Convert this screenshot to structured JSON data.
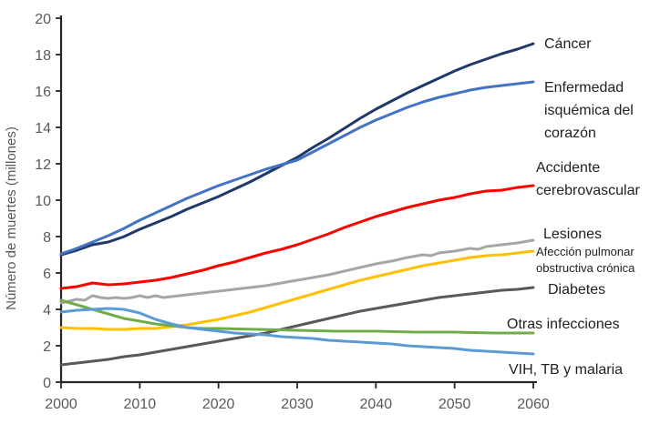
{
  "chart_data": {
    "type": "line",
    "title": "",
    "xlabel": "",
    "ylabel": "Número de muertes (millones)",
    "xlim": [
      2000,
      2060
    ],
    "ylim": [
      0,
      20
    ],
    "x_ticks": [
      2000,
      2010,
      2020,
      2030,
      2040,
      2050,
      2060
    ],
    "y_ticks": [
      0,
      2,
      4,
      6,
      8,
      10,
      12,
      14,
      16,
      18,
      20
    ],
    "grid": false,
    "legend_position": "right-annotations",
    "axis_color": "#262626",
    "tick_label_color": "#595959",
    "annotation_color": "#212121",
    "series": [
      {
        "name": "cancer",
        "label": "Cáncer",
        "color": "#1f3a68",
        "points": [
          [
            2000,
            7.0
          ],
          [
            2002,
            7.25
          ],
          [
            2004,
            7.55
          ],
          [
            2006,
            7.7
          ],
          [
            2008,
            8.0
          ],
          [
            2010,
            8.4
          ],
          [
            2012,
            8.75
          ],
          [
            2014,
            9.1
          ],
          [
            2016,
            9.5
          ],
          [
            2018,
            9.85
          ],
          [
            2020,
            10.2
          ],
          [
            2022,
            10.6
          ],
          [
            2024,
            11.0
          ],
          [
            2026,
            11.45
          ],
          [
            2028,
            11.9
          ],
          [
            2030,
            12.35
          ],
          [
            2032,
            12.9
          ],
          [
            2034,
            13.4
          ],
          [
            2036,
            13.95
          ],
          [
            2038,
            14.5
          ],
          [
            2040,
            15.0
          ],
          [
            2042,
            15.45
          ],
          [
            2044,
            15.9
          ],
          [
            2046,
            16.3
          ],
          [
            2048,
            16.7
          ],
          [
            2050,
            17.1
          ],
          [
            2052,
            17.45
          ],
          [
            2054,
            17.75
          ],
          [
            2056,
            18.05
          ],
          [
            2058,
            18.3
          ],
          [
            2060,
            18.6
          ]
        ]
      },
      {
        "name": "enfermedad-isquemica",
        "label": "Enfermedad isquémica del corazón",
        "color": "#4472c4",
        "points": [
          [
            2000,
            7.05
          ],
          [
            2002,
            7.35
          ],
          [
            2004,
            7.7
          ],
          [
            2006,
            8.05
          ],
          [
            2008,
            8.45
          ],
          [
            2010,
            8.9
          ],
          [
            2012,
            9.3
          ],
          [
            2014,
            9.7
          ],
          [
            2016,
            10.1
          ],
          [
            2018,
            10.45
          ],
          [
            2020,
            10.8
          ],
          [
            2022,
            11.1
          ],
          [
            2024,
            11.4
          ],
          [
            2026,
            11.7
          ],
          [
            2028,
            11.95
          ],
          [
            2030,
            12.2
          ],
          [
            2032,
            12.65
          ],
          [
            2034,
            13.1
          ],
          [
            2036,
            13.55
          ],
          [
            2038,
            14.0
          ],
          [
            2040,
            14.4
          ],
          [
            2042,
            14.75
          ],
          [
            2044,
            15.1
          ],
          [
            2046,
            15.4
          ],
          [
            2048,
            15.65
          ],
          [
            2050,
            15.85
          ],
          [
            2052,
            16.05
          ],
          [
            2054,
            16.2
          ],
          [
            2056,
            16.3
          ],
          [
            2058,
            16.4
          ],
          [
            2060,
            16.5
          ]
        ]
      },
      {
        "name": "accidente-cerebrovascular",
        "label": "Accidente cerebrovascular",
        "color": "#ff0000",
        "points": [
          [
            2000,
            5.15
          ],
          [
            2002,
            5.25
          ],
          [
            2004,
            5.45
          ],
          [
            2006,
            5.35
          ],
          [
            2008,
            5.4
          ],
          [
            2010,
            5.5
          ],
          [
            2012,
            5.6
          ],
          [
            2014,
            5.75
          ],
          [
            2016,
            5.95
          ],
          [
            2018,
            6.15
          ],
          [
            2020,
            6.4
          ],
          [
            2022,
            6.6
          ],
          [
            2024,
            6.85
          ],
          [
            2026,
            7.1
          ],
          [
            2028,
            7.3
          ],
          [
            2030,
            7.55
          ],
          [
            2032,
            7.85
          ],
          [
            2034,
            8.15
          ],
          [
            2036,
            8.5
          ],
          [
            2038,
            8.8
          ],
          [
            2040,
            9.1
          ],
          [
            2042,
            9.35
          ],
          [
            2044,
            9.6
          ],
          [
            2046,
            9.8
          ],
          [
            2048,
            10.0
          ],
          [
            2050,
            10.15
          ],
          [
            2052,
            10.35
          ],
          [
            2054,
            10.5
          ],
          [
            2056,
            10.55
          ],
          [
            2058,
            10.7
          ],
          [
            2060,
            10.8
          ]
        ]
      },
      {
        "name": "lesiones",
        "label": "Lesiones",
        "color": "#a6a6a6",
        "points": [
          [
            2000,
            4.35
          ],
          [
            2001,
            4.45
          ],
          [
            2002,
            4.55
          ],
          [
            2003,
            4.5
          ],
          [
            2004,
            4.75
          ],
          [
            2005,
            4.65
          ],
          [
            2006,
            4.6
          ],
          [
            2007,
            4.65
          ],
          [
            2008,
            4.6
          ],
          [
            2009,
            4.65
          ],
          [
            2010,
            4.75
          ],
          [
            2011,
            4.65
          ],
          [
            2012,
            4.75
          ],
          [
            2013,
            4.65
          ],
          [
            2014,
            4.7
          ],
          [
            2015,
            4.75
          ],
          [
            2016,
            4.8
          ],
          [
            2018,
            4.9
          ],
          [
            2020,
            5.0
          ],
          [
            2022,
            5.1
          ],
          [
            2024,
            5.2
          ],
          [
            2026,
            5.3
          ],
          [
            2028,
            5.45
          ],
          [
            2030,
            5.6
          ],
          [
            2032,
            5.75
          ],
          [
            2034,
            5.9
          ],
          [
            2036,
            6.1
          ],
          [
            2038,
            6.3
          ],
          [
            2040,
            6.5
          ],
          [
            2042,
            6.65
          ],
          [
            2044,
            6.85
          ],
          [
            2046,
            7.0
          ],
          [
            2047,
            6.95
          ],
          [
            2048,
            7.1
          ],
          [
            2050,
            7.2
          ],
          [
            2052,
            7.35
          ],
          [
            2053,
            7.3
          ],
          [
            2054,
            7.45
          ],
          [
            2056,
            7.55
          ],
          [
            2058,
            7.65
          ],
          [
            2060,
            7.8
          ]
        ]
      },
      {
        "name": "afeccion-pulmonar",
        "label": "Afección pulmonar obstructiva crónica",
        "color": "#ffc000",
        "points": [
          [
            2000,
            3.0
          ],
          [
            2002,
            2.95
          ],
          [
            2004,
            2.95
          ],
          [
            2006,
            2.9
          ],
          [
            2008,
            2.9
          ],
          [
            2010,
            2.95
          ],
          [
            2012,
            2.95
          ],
          [
            2014,
            3.05
          ],
          [
            2016,
            3.15
          ],
          [
            2018,
            3.3
          ],
          [
            2020,
            3.45
          ],
          [
            2022,
            3.65
          ],
          [
            2024,
            3.85
          ],
          [
            2026,
            4.1
          ],
          [
            2028,
            4.35
          ],
          [
            2030,
            4.6
          ],
          [
            2032,
            4.85
          ],
          [
            2034,
            5.1
          ],
          [
            2036,
            5.35
          ],
          [
            2038,
            5.6
          ],
          [
            2040,
            5.8
          ],
          [
            2042,
            6.0
          ],
          [
            2044,
            6.2
          ],
          [
            2046,
            6.4
          ],
          [
            2048,
            6.55
          ],
          [
            2050,
            6.7
          ],
          [
            2052,
            6.85
          ],
          [
            2054,
            6.95
          ],
          [
            2056,
            7.0
          ],
          [
            2058,
            7.1
          ],
          [
            2060,
            7.2
          ]
        ]
      },
      {
        "name": "diabetes",
        "label": "Diabetes",
        "color": "#595959",
        "points": [
          [
            2000,
            0.95
          ],
          [
            2002,
            1.05
          ],
          [
            2004,
            1.15
          ],
          [
            2006,
            1.25
          ],
          [
            2008,
            1.4
          ],
          [
            2010,
            1.5
          ],
          [
            2012,
            1.65
          ],
          [
            2014,
            1.8
          ],
          [
            2016,
            1.95
          ],
          [
            2018,
            2.1
          ],
          [
            2020,
            2.25
          ],
          [
            2022,
            2.4
          ],
          [
            2024,
            2.55
          ],
          [
            2026,
            2.7
          ],
          [
            2028,
            2.9
          ],
          [
            2030,
            3.1
          ],
          [
            2032,
            3.3
          ],
          [
            2034,
            3.5
          ],
          [
            2036,
            3.7
          ],
          [
            2038,
            3.9
          ],
          [
            2040,
            4.05
          ],
          [
            2042,
            4.2
          ],
          [
            2044,
            4.35
          ],
          [
            2046,
            4.5
          ],
          [
            2048,
            4.65
          ],
          [
            2050,
            4.75
          ],
          [
            2052,
            4.85
          ],
          [
            2054,
            4.95
          ],
          [
            2056,
            5.05
          ],
          [
            2058,
            5.1
          ],
          [
            2060,
            5.2
          ]
        ]
      },
      {
        "name": "otras-infecciones",
        "label": "Otras infecciones",
        "color": "#70ad47",
        "points": [
          [
            2000,
            4.5
          ],
          [
            2002,
            4.25
          ],
          [
            2004,
            4.0
          ],
          [
            2006,
            3.75
          ],
          [
            2008,
            3.5
          ],
          [
            2010,
            3.35
          ],
          [
            2012,
            3.2
          ],
          [
            2014,
            3.1
          ],
          [
            2016,
            3.0
          ],
          [
            2018,
            2.95
          ],
          [
            2020,
            2.95
          ],
          [
            2025,
            2.9
          ],
          [
            2030,
            2.85
          ],
          [
            2035,
            2.8
          ],
          [
            2040,
            2.8
          ],
          [
            2045,
            2.75
          ],
          [
            2050,
            2.75
          ],
          [
            2055,
            2.7
          ],
          [
            2060,
            2.7
          ]
        ]
      },
      {
        "name": "vih-tb-malaria",
        "label": "VIH, TB y malaria",
        "color": "#5b9bd5",
        "points": [
          [
            2000,
            3.85
          ],
          [
            2002,
            3.95
          ],
          [
            2004,
            4.0
          ],
          [
            2006,
            4.05
          ],
          [
            2008,
            4.0
          ],
          [
            2010,
            3.8
          ],
          [
            2012,
            3.45
          ],
          [
            2014,
            3.2
          ],
          [
            2016,
            3.0
          ],
          [
            2018,
            2.9
          ],
          [
            2020,
            2.8
          ],
          [
            2022,
            2.7
          ],
          [
            2024,
            2.65
          ],
          [
            2026,
            2.6
          ],
          [
            2028,
            2.5
          ],
          [
            2030,
            2.45
          ],
          [
            2032,
            2.4
          ],
          [
            2034,
            2.3
          ],
          [
            2036,
            2.25
          ],
          [
            2038,
            2.2
          ],
          [
            2040,
            2.15
          ],
          [
            2042,
            2.1
          ],
          [
            2044,
            2.0
          ],
          [
            2046,
            1.95
          ],
          [
            2048,
            1.9
          ],
          [
            2050,
            1.85
          ],
          [
            2052,
            1.75
          ],
          [
            2054,
            1.7
          ],
          [
            2056,
            1.65
          ],
          [
            2058,
            1.6
          ],
          [
            2060,
            1.55
          ]
        ]
      }
    ]
  }
}
